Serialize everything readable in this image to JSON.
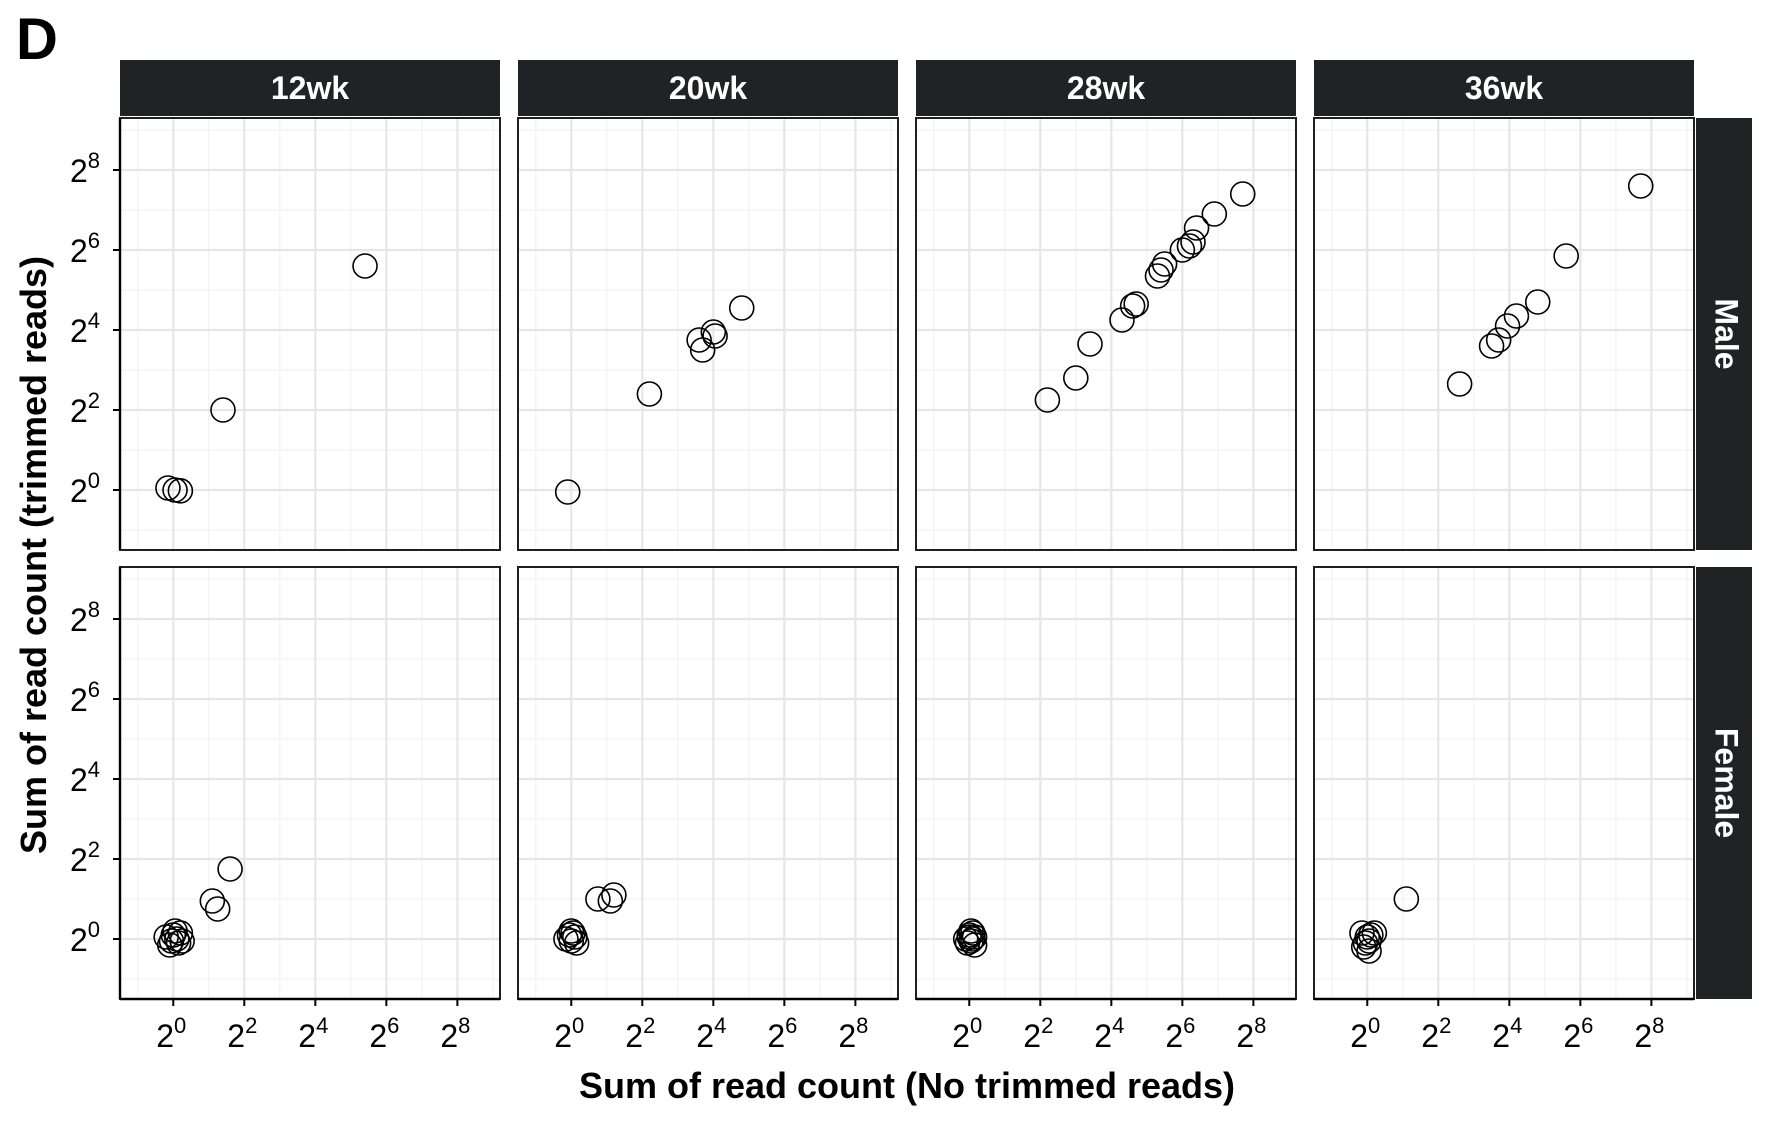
{
  "panel_label": "D",
  "chart_data": {
    "type": "scatter",
    "xlabel": "Sum of read count (No trimmed reads)",
    "ylabel": "Sum of read count (trimmed reads)",
    "scale": "log2",
    "xlim": [
      -1.5,
      9.2
    ],
    "ylim": [
      -1.5,
      9.3
    ],
    "x_ticks": [
      0,
      2,
      4,
      6,
      8
    ],
    "y_ticks": [
      0,
      2,
      4,
      6,
      8
    ],
    "tick_base": "2",
    "tick_labels": [
      "2^0",
      "2^2",
      "2^4",
      "2^6",
      "2^8"
    ],
    "grid": true,
    "columns": [
      "12wk",
      "20wk",
      "28wk",
      "36wk"
    ],
    "rows": [
      "Male",
      "Female"
    ],
    "panels": [
      {
        "row": "Male",
        "column": "12wk",
        "x": [
          -0.15,
          0.05,
          0.2,
          1.4,
          5.4
        ],
        "y": [
          0.05,
          0.0,
          -0.02,
          2.0,
          5.6
        ]
      },
      {
        "row": "Male",
        "column": "20wk",
        "x": [
          -0.1,
          2.2,
          3.6,
          3.7,
          4.0,
          4.05,
          4.8
        ],
        "y": [
          -0.05,
          2.4,
          3.75,
          3.5,
          3.95,
          3.85,
          4.55
        ]
      },
      {
        "row": "Male",
        "column": "28wk",
        "x": [
          2.2,
          3.0,
          3.4,
          4.3,
          4.6,
          4.7,
          5.3,
          5.4,
          5.5,
          6.0,
          6.2,
          6.3,
          6.4,
          6.9,
          7.7
        ],
        "y": [
          2.25,
          2.8,
          3.65,
          4.25,
          4.6,
          4.65,
          5.35,
          5.5,
          5.65,
          6.0,
          6.1,
          6.2,
          6.55,
          6.9,
          7.4
        ],
        "overplotted_near": []
      },
      {
        "row": "Male",
        "column": "36wk",
        "x": [
          2.6,
          3.5,
          3.7,
          3.95,
          4.2,
          4.8,
          5.6,
          7.7
        ],
        "y": [
          2.65,
          3.6,
          3.75,
          4.1,
          4.35,
          4.7,
          5.85,
          7.6
        ]
      },
      {
        "row": "Female",
        "column": "12wk",
        "x": [
          -0.2,
          -0.05,
          0.0,
          0.1,
          0.15,
          0.2,
          0.25,
          -0.1,
          0.05,
          1.1,
          1.25,
          1.6
        ],
        "y": [
          0.05,
          -0.05,
          0.1,
          0.0,
          -0.1,
          0.15,
          -0.05,
          -0.15,
          0.2,
          0.95,
          0.75,
          1.75
        ]
      },
      {
        "row": "Female",
        "column": "20wk",
        "x": [
          -0.15,
          -0.05,
          0.0,
          0.05,
          0.1,
          0.15,
          0.0,
          0.75,
          1.1,
          1.2
        ],
        "y": [
          0.0,
          0.1,
          -0.05,
          0.15,
          0.05,
          -0.1,
          0.2,
          1.0,
          0.95,
          1.1
        ]
      },
      {
        "row": "Female",
        "column": "28wk",
        "x": [
          -0.1,
          0.0,
          0.05,
          0.1,
          0.15,
          -0.05,
          0.05,
          0.15,
          0.0,
          0.1
        ],
        "y": [
          0.0,
          0.1,
          -0.05,
          0.15,
          0.05,
          -0.1,
          0.2,
          -0.15,
          0.05,
          0.0
        ]
      },
      {
        "row": "Female",
        "column": "36wk",
        "x": [
          -0.15,
          -0.05,
          0.0,
          0.05,
          0.1,
          0.2,
          -0.1,
          0.05,
          1.1
        ],
        "y": [
          0.15,
          -0.1,
          0.05,
          -0.05,
          0.1,
          0.15,
          -0.2,
          -0.3,
          1.0
        ]
      }
    ]
  }
}
